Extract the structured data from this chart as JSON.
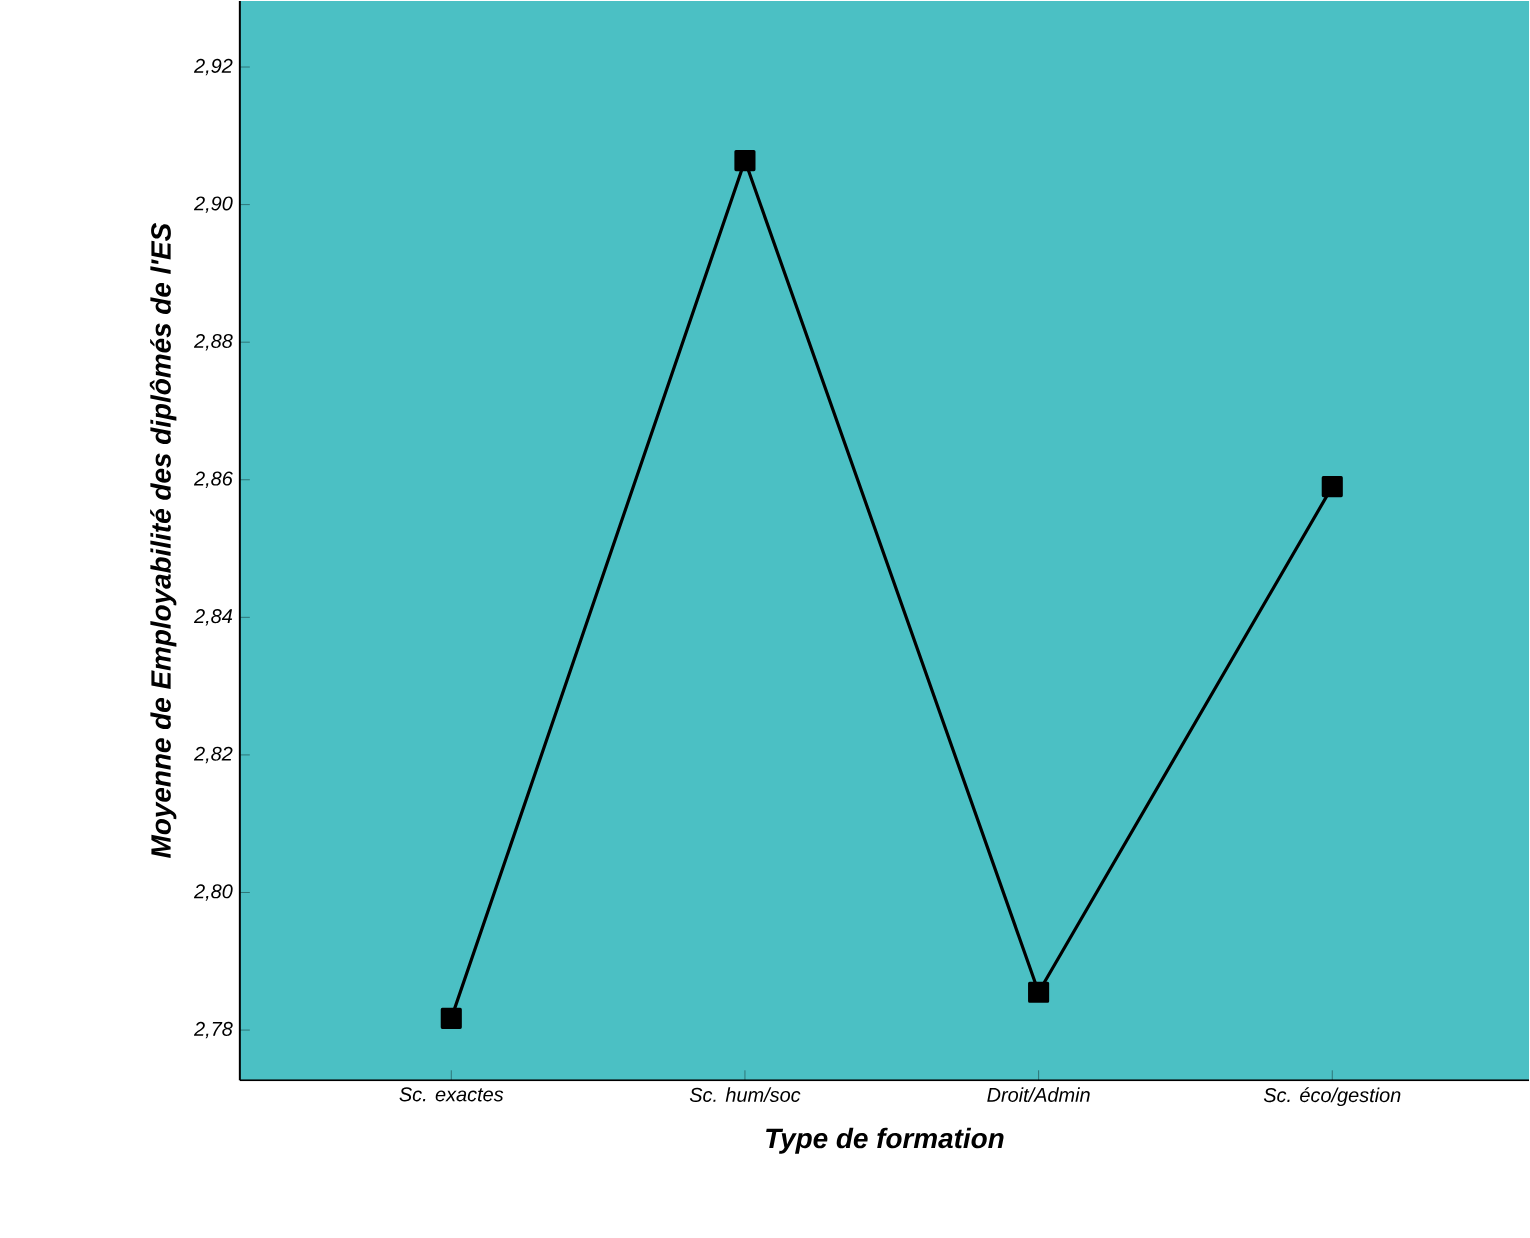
{
  "chart_data": {
    "type": "line",
    "xlabel": "Type de formation",
    "ylabel": "Moyenne de Employabilité des diplômés de l'ES",
    "categories": [
      "Sc. exactes",
      "Sc. hum/soc",
      "Droit/Admin",
      "Sc. éco/gestion"
    ],
    "series": [
      {
        "color": "#000000",
        "values": [
          2.7817,
          2.9064,
          2.7855,
          2.859
        ]
      }
    ],
    "ylim": [
      2.7727,
      2.9296
    ],
    "yticks": [
      {
        "value": 2.78,
        "label": "2,78"
      },
      {
        "value": 2.8,
        "label": "2,80"
      },
      {
        "value": 2.82,
        "label": "2,82"
      },
      {
        "value": 2.84,
        "label": "2,84"
      },
      {
        "value": 2.86,
        "label": "2,86"
      },
      {
        "value": 2.88,
        "label": "2,88"
      },
      {
        "value": 2.9,
        "label": "2,90"
      },
      {
        "value": 2.92,
        "label": "2,92"
      }
    ],
    "grid": false,
    "marker": "square",
    "line_style": "solid"
  }
}
